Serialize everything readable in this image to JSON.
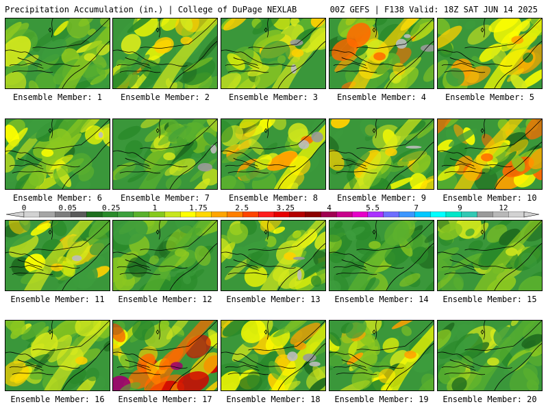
{
  "header": {
    "title": "Precipitation Accumulation (in.) | College of DuPage NEXLAB",
    "valid": "00Z GEFS | F138 Valid: 18Z SAT JUN 14 2025"
  },
  "colorbar": {
    "tick_labels": [
      "0",
      "0.05",
      "0.25",
      "1",
      "1.75",
      "2.5",
      "3.25",
      "4",
      "5.5",
      "7",
      "9",
      "12"
    ],
    "colors": [
      "#d2d2d2",
      "#a5a5a5",
      "#7d7d7d",
      "#5a5a5a",
      "#1e6e1e",
      "#2a8a2a",
      "#3ca03c",
      "#59b12c",
      "#86c81e",
      "#c8e61e",
      "#ffff00",
      "#ffd700",
      "#ffa500",
      "#ff7f00",
      "#ff4500",
      "#ff1e1e",
      "#e60000",
      "#b40000",
      "#8b0000",
      "#a00050",
      "#c8008c",
      "#e600c8",
      "#aa32ff",
      "#6e6eff",
      "#3c96ff",
      "#00c8ff",
      "#00ffff",
      "#00e6c8",
      "#32c8b4",
      "#9a9a9a",
      "#b8b8b8",
      "#d2d2d2"
    ]
  },
  "members": [
    {
      "label": "Ensemble Member: 1",
      "hot": 0.45,
      "gray": 0.0,
      "seed": 11
    },
    {
      "label": "Ensemble Member: 2",
      "hot": 0.6,
      "gray": 0.0,
      "seed": 23
    },
    {
      "label": "Ensemble Member: 3",
      "hot": 0.6,
      "gray": 0.35,
      "seed": 37
    },
    {
      "label": "Ensemble Member: 4",
      "hot": 0.75,
      "gray": 0.55,
      "seed": 41
    },
    {
      "label": "Ensemble Member: 5",
      "hot": 0.65,
      "gray": 0.0,
      "seed": 53
    },
    {
      "label": "Ensemble Member: 6",
      "hot": 0.5,
      "gray": 0.2,
      "seed": 67
    },
    {
      "label": "Ensemble Member: 7",
      "hot": 0.4,
      "gray": 0.25,
      "seed": 71
    },
    {
      "label": "Ensemble Member: 8",
      "hot": 0.7,
      "gray": 0.3,
      "seed": 83
    },
    {
      "label": "Ensemble Member: 9",
      "hot": 0.6,
      "gray": 0.1,
      "seed": 97
    },
    {
      "label": "Ensemble Member: 10",
      "hot": 0.75,
      "gray": 0.0,
      "seed": 103
    },
    {
      "label": "Ensemble Member: 11",
      "hot": 0.6,
      "gray": 0.1,
      "seed": 113
    },
    {
      "label": "Ensemble Member: 12",
      "hot": 0.35,
      "gray": 0.0,
      "seed": 127
    },
    {
      "label": "Ensemble Member: 13",
      "hot": 0.55,
      "gray": 0.35,
      "seed": 131
    },
    {
      "label": "Ensemble Member: 14",
      "hot": 0.35,
      "gray": 0.0,
      "seed": 149
    },
    {
      "label": "Ensemble Member: 15",
      "hot": 0.45,
      "gray": 0.0,
      "seed": 157
    },
    {
      "label": "Ensemble Member: 16",
      "hot": 0.55,
      "gray": 0.0,
      "seed": 167
    },
    {
      "label": "Ensemble Member: 17",
      "hot": 0.95,
      "gray": 0.0,
      "seed": 173
    },
    {
      "label": "Ensemble Member: 18",
      "hot": 0.65,
      "gray": 0.5,
      "seed": 181
    },
    {
      "label": "Ensemble Member: 19",
      "hot": 0.65,
      "gray": 0.0,
      "seed": 191
    },
    {
      "label": "Ensemble Member: 20",
      "hot": 0.4,
      "gray": 0.0,
      "seed": 199
    }
  ]
}
